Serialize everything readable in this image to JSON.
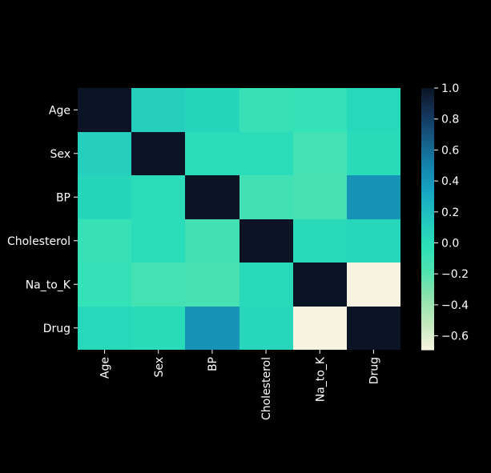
{
  "chart_data": {
    "type": "heatmap",
    "title": "",
    "xlabel": "",
    "ylabel": "",
    "x_labels": [
      "Age",
      "Sex",
      "BP",
      "Cholesterol",
      "Na_to_K",
      "Drug"
    ],
    "y_labels": [
      "Age",
      "Sex",
      "BP",
      "Cholesterol",
      "Na_to_K",
      "Drug"
    ],
    "values": [
      [
        1.0,
        0.1,
        0.06,
        -0.07,
        -0.06,
        0.04
      ],
      [
        0.1,
        1.0,
        0.01,
        0.01,
        -0.13,
        0.02
      ],
      [
        0.06,
        0.01,
        1.0,
        -0.12,
        -0.15,
        0.42
      ],
      [
        -0.07,
        0.01,
        -0.12,
        1.0,
        0.03,
        0.05
      ],
      [
        -0.06,
        -0.13,
        -0.15,
        0.03,
        1.0,
        -0.69
      ],
      [
        0.04,
        0.02,
        0.42,
        0.05,
        -0.69,
        1.0
      ]
    ],
    "colorbar": {
      "min": -0.69,
      "max": 1.0,
      "ticks": [
        1.0,
        0.8,
        0.6,
        0.4,
        0.2,
        0.0,
        -0.2,
        -0.4,
        -0.6
      ],
      "tick_labels": [
        "1.0",
        "0.8",
        "0.6",
        "0.4",
        "0.2",
        "0.0",
        "−0.2",
        "−0.4",
        "−0.6"
      ]
    },
    "colormap": "mako_r-like (light cream to mint to teal to dark navy)",
    "colormap_stops": [
      "#f6f3e0",
      "#c3e9bd",
      "#8ee2ad",
      "#4fe2b0",
      "#2be0b8",
      "#22c6bf",
      "#18a6c4",
      "#1485ad",
      "#165d86",
      "#15355a",
      "#0b1424"
    ],
    "grid": false,
    "legend": "colorbar-right"
  },
  "colors": {
    "background": "#000000",
    "text": "#ffffff"
  }
}
